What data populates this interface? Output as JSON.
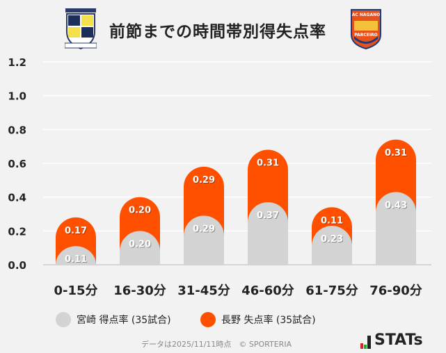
{
  "title": "前節までの時間帯別得失点率",
  "logos": {
    "left": "TOCHIGI MIYAZAKI",
    "right": "AC NAGANO PARCEIRO"
  },
  "colors": {
    "home": "#d3d3d3",
    "away": "#ff5000",
    "background": "#f2f2f2"
  },
  "chart_data": {
    "type": "bar",
    "stacked": true,
    "categories": [
      "0-15分",
      "16-30分",
      "31-45分",
      "46-60分",
      "61-75分",
      "76-90分"
    ],
    "series": [
      {
        "name": "宮崎 得点率 (35試合)",
        "values": [
          0.11,
          0.2,
          0.29,
          0.37,
          0.23,
          0.43
        ],
        "color": "#d3d3d3"
      },
      {
        "name": "長野 失点率 (35試合)",
        "values": [
          0.17,
          0.2,
          0.29,
          0.31,
          0.11,
          0.31
        ],
        "color": "#ff5000"
      }
    ],
    "ylim": [
      0,
      1.2
    ],
    "yticks": [
      "0.0",
      "0.2",
      "0.4",
      "0.6",
      "0.8",
      "1.0",
      "1.2"
    ],
    "grid": true,
    "legend": "bottom"
  },
  "legend": {
    "home": "宮崎 得点率 (35試合)",
    "away": "長野 失点率 (35試合)"
  },
  "footer": "データは2025/11/11時点　© SPORTERIA",
  "brand": "STATs"
}
